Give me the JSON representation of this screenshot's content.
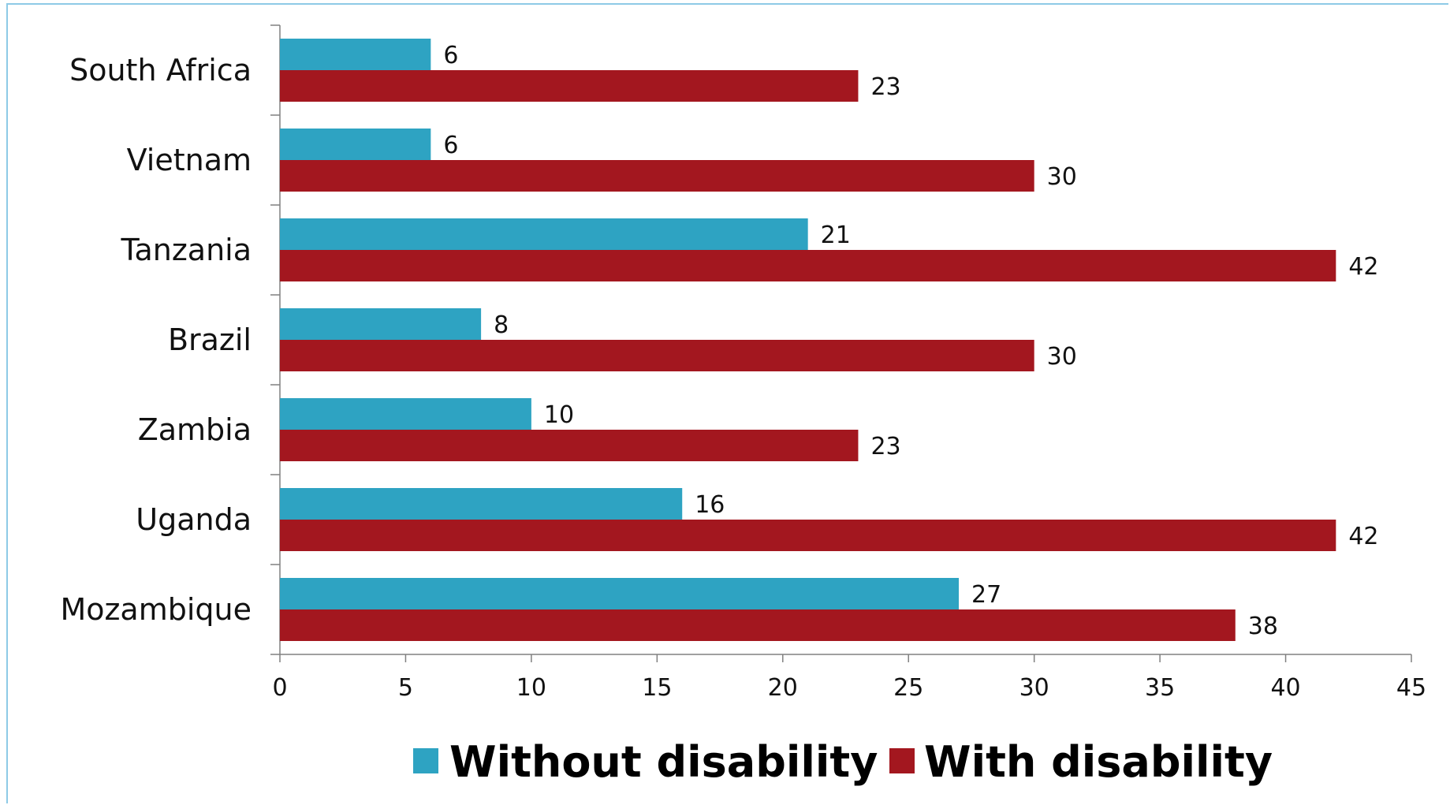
{
  "chart_data": {
    "type": "bar",
    "orientation": "horizontal",
    "categories": [
      "South Africa",
      "Vietnam",
      "Tanzania",
      "Brazil",
      "Zambia",
      "Uganda",
      "Mozambique"
    ],
    "series": [
      {
        "name": "Without disability",
        "color": "#2ea3c2",
        "values": [
          6,
          6,
          21,
          8,
          10,
          16,
          27
        ],
        "labels": [
          "6",
          "6",
          "21",
          "8",
          "10",
          "16",
          "27"
        ]
      },
      {
        "name": "With disability",
        "color": "#a3171f",
        "values": [
          23,
          30,
          42,
          30,
          23,
          42,
          38
        ],
        "labels": [
          "23",
          "30",
          "42",
          "30",
          "23",
          "42",
          "38"
        ]
      }
    ],
    "xlim": [
      0,
      45
    ],
    "xticks": [
      0,
      5,
      10,
      15,
      20,
      25,
      30,
      35,
      40,
      45
    ],
    "xtick_labels": [
      "0",
      "5",
      "10",
      "15",
      "20",
      "25",
      "30",
      "35",
      "40",
      "45"
    ],
    "title": "",
    "xlabel": "",
    "ylabel": "",
    "grid": false,
    "legend": "bottom"
  }
}
